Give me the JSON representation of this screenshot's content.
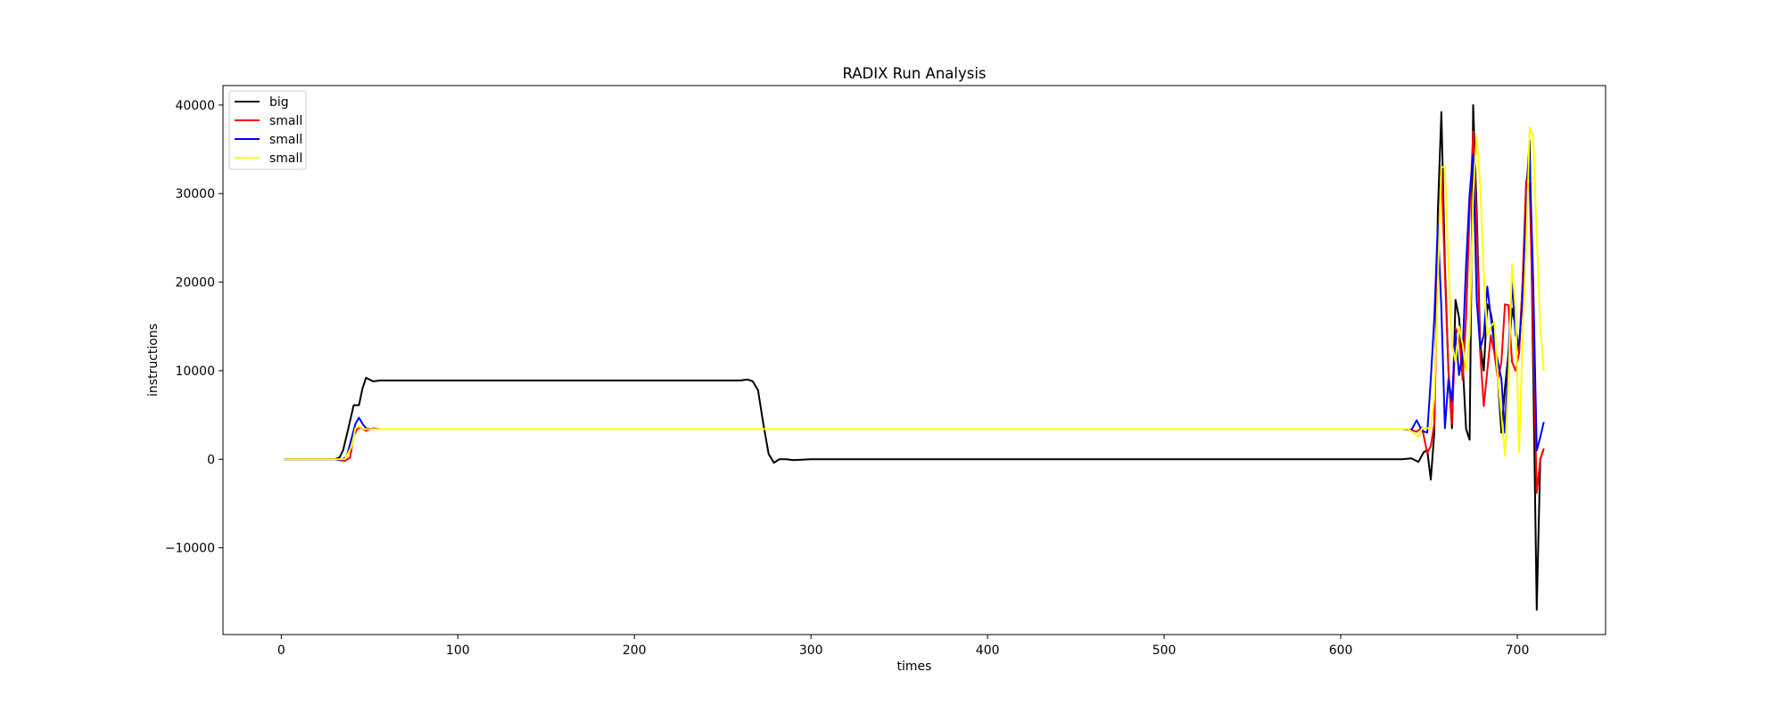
{
  "chart_data": {
    "type": "line",
    "title": "RADIX Run Analysis",
    "xlabel": "times",
    "ylabel": "instructions",
    "xlim": [
      -33,
      750
    ],
    "ylim": [
      -19800,
      42200
    ],
    "xticks": [
      0,
      100,
      200,
      300,
      400,
      500,
      600,
      700
    ],
    "yticks": [
      -10000,
      0,
      10000,
      20000,
      30000,
      40000
    ],
    "xtick_labels": [
      "0",
      "100",
      "200",
      "300",
      "400",
      "500",
      "600",
      "700"
    ],
    "ytick_labels": [
      "−10000",
      "0",
      "10000",
      "20000",
      "30000",
      "40000"
    ],
    "grid": false,
    "legend_position": "top-left",
    "series": [
      {
        "name": "big",
        "color": "#000000",
        "x": [
          2,
          30,
          33,
          35,
          38,
          41,
          44,
          46,
          48,
          52,
          56,
          100,
          200,
          260,
          264,
          267,
          270,
          273,
          276,
          279,
          282,
          286,
          290,
          300,
          400,
          500,
          600,
          630,
          635,
          640,
          644,
          647,
          649,
          651,
          653,
          655,
          657,
          659,
          661,
          663,
          665,
          667,
          669,
          671,
          673,
          675,
          677,
          679,
          681,
          683,
          685,
          687,
          689,
          691,
          693,
          695,
          697,
          699,
          701,
          703,
          705,
          707,
          709,
          711,
          713,
          715
        ],
        "y": [
          0,
          0,
          200,
          1000,
          3500,
          6100,
          6100,
          8000,
          9200,
          8800,
          8900,
          8900,
          8900,
          8900,
          9000,
          8800,
          7800,
          4000,
          600,
          -400,
          0,
          0,
          -100,
          0,
          0,
          0,
          0,
          0,
          0,
          100,
          -300,
          800,
          1000,
          -2300,
          3000,
          28000,
          39200,
          22000,
          10000,
          3500,
          18000,
          16000,
          11000,
          3400,
          2200,
          40000,
          28000,
          13000,
          10000,
          17500,
          16500,
          14000,
          9000,
          3000,
          8000,
          12000,
          17000,
          15000,
          12000,
          20000,
          30000,
          36000,
          10000,
          -17000,
          0,
          1200
        ]
      },
      {
        "name": "small",
        "color": "#ff0000",
        "x": [
          2,
          30,
          36,
          39,
          41,
          43,
          45,
          48,
          52,
          56,
          100,
          200,
          300,
          400,
          500,
          600,
          635,
          640,
          643,
          646,
          649,
          651,
          653,
          655,
          657,
          659,
          661,
          663,
          665,
          667,
          669,
          671,
          673,
          675,
          677,
          679,
          681,
          683,
          685,
          687,
          689,
          691,
          693,
          695,
          697,
          699,
          701,
          703,
          705,
          707,
          709,
          711,
          713,
          715
        ],
        "y": [
          0,
          0,
          -200,
          200,
          2600,
          3400,
          3600,
          3200,
          3500,
          3400,
          3400,
          3400,
          3400,
          3400,
          3400,
          3400,
          3400,
          3300,
          3100,
          3600,
          700,
          1500,
          4000,
          22000,
          33000,
          21000,
          10000,
          4000,
          14800,
          14000,
          9000,
          16000,
          28000,
          37000,
          26000,
          12000,
          6000,
          10000,
          14000,
          12000,
          9000,
          11000,
          17500,
          17400,
          11000,
          10000,
          12000,
          20000,
          31500,
          31000,
          14000,
          -3800,
          0,
          1200
        ]
      },
      {
        "name": "small",
        "color": "#0000ff",
        "x": [
          2,
          30,
          34,
          37,
          40,
          42,
          44,
          46,
          48,
          52,
          56,
          100,
          200,
          300,
          400,
          500,
          600,
          635,
          640,
          643,
          646,
          649,
          651,
          653,
          655,
          657,
          659,
          661,
          663,
          665,
          667,
          669,
          671,
          673,
          675,
          677,
          679,
          681,
          683,
          685,
          687,
          689,
          691,
          693,
          695,
          697,
          699,
          701,
          703,
          705,
          707,
          709,
          711,
          713,
          715
        ],
        "y": [
          0,
          0,
          -100,
          300,
          2500,
          4000,
          4700,
          4000,
          3500,
          3400,
          3400,
          3400,
          3400,
          3400,
          3400,
          3400,
          3400,
          3400,
          3300,
          4400,
          3200,
          3000,
          9000,
          16000,
          26500,
          17000,
          3500,
          9000,
          6500,
          14500,
          9500,
          12000,
          22000,
          30000,
          34500,
          18000,
          12500,
          14000,
          19500,
          16000,
          13000,
          11000,
          9000,
          3000,
          12000,
          20000,
          14000,
          13000,
          18000,
          28000,
          34000,
          20000,
          1000,
          2500,
          4200
        ]
      },
      {
        "name": "small",
        "color": "#ffff00",
        "x": [
          2,
          30,
          36,
          40,
          42,
          44,
          47,
          50,
          56,
          100,
          200,
          300,
          400,
          500,
          600,
          638,
          641,
          644,
          646,
          649,
          651,
          653,
          655,
          657,
          659,
          661,
          663,
          665,
          667,
          669,
          671,
          673,
          675,
          677,
          679,
          681,
          683,
          685,
          687,
          689,
          691,
          693,
          695,
          697,
          699,
          701,
          703,
          705,
          707,
          709,
          711,
          713,
          715
        ],
        "y": [
          0,
          0,
          0,
          1500,
          3500,
          3700,
          3400,
          3400,
          3400,
          3400,
          3400,
          3400,
          3400,
          3400,
          3400,
          3400,
          3000,
          2500,
          3500,
          3500,
          3500,
          7000,
          20000,
          33000,
          33000,
          22000,
          13000,
          11000,
          15000,
          13000,
          10000,
          14000,
          30000,
          36500,
          31000,
          21000,
          14000,
          15000,
          15500,
          9000,
          5000,
          400,
          9000,
          22000,
          17000,
          800,
          14000,
          24000,
          37500,
          36500,
          25000,
          15000,
          10000
        ]
      }
    ]
  }
}
